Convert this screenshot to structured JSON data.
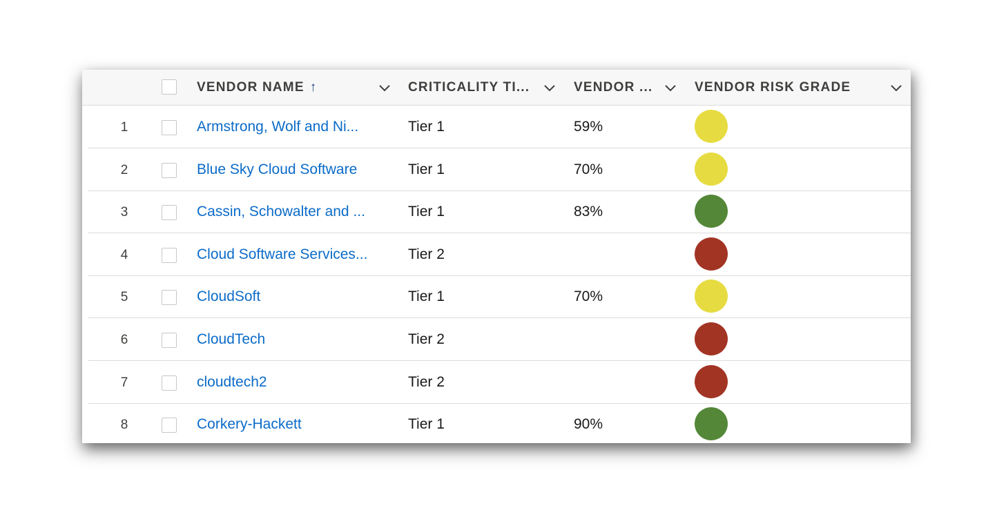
{
  "columns": {
    "vendor_name": "VENDOR NAME",
    "sort_arrow": "↑",
    "criticality_tier": "CRITICALITY TI...",
    "vendor_score": "VENDOR ...",
    "vendor_risk_grade": "VENDOR RISK GRADE"
  },
  "colors": {
    "link": "#0b6bc8",
    "grade_yellow": "#e6dc42",
    "grade_green": "#548738",
    "grade_red": "#a23424"
  },
  "rows": [
    {
      "num": "1",
      "name": "Armstrong, Wolf and Ni...",
      "tier": "Tier 1",
      "score": "59%",
      "grade": "yellow"
    },
    {
      "num": "2",
      "name": "Blue Sky Cloud Software",
      "tier": "Tier 1",
      "score": "70%",
      "grade": "yellow"
    },
    {
      "num": "3",
      "name": "Cassin, Schowalter and ...",
      "tier": "Tier 1",
      "score": "83%",
      "grade": "green"
    },
    {
      "num": "4",
      "name": "Cloud Software Services...",
      "tier": "Tier 2",
      "score": "",
      "grade": "red"
    },
    {
      "num": "5",
      "name": "CloudSoft",
      "tier": "Tier 1",
      "score": "70%",
      "grade": "yellow"
    },
    {
      "num": "6",
      "name": "CloudTech",
      "tier": "Tier 2",
      "score": "",
      "grade": "red"
    },
    {
      "num": "7",
      "name": "cloudtech2",
      "tier": "Tier 2",
      "score": "",
      "grade": "red"
    },
    {
      "num": "8",
      "name": "Corkery-Hackett",
      "tier": "Tier 1",
      "score": "90%",
      "grade": "green"
    }
  ]
}
